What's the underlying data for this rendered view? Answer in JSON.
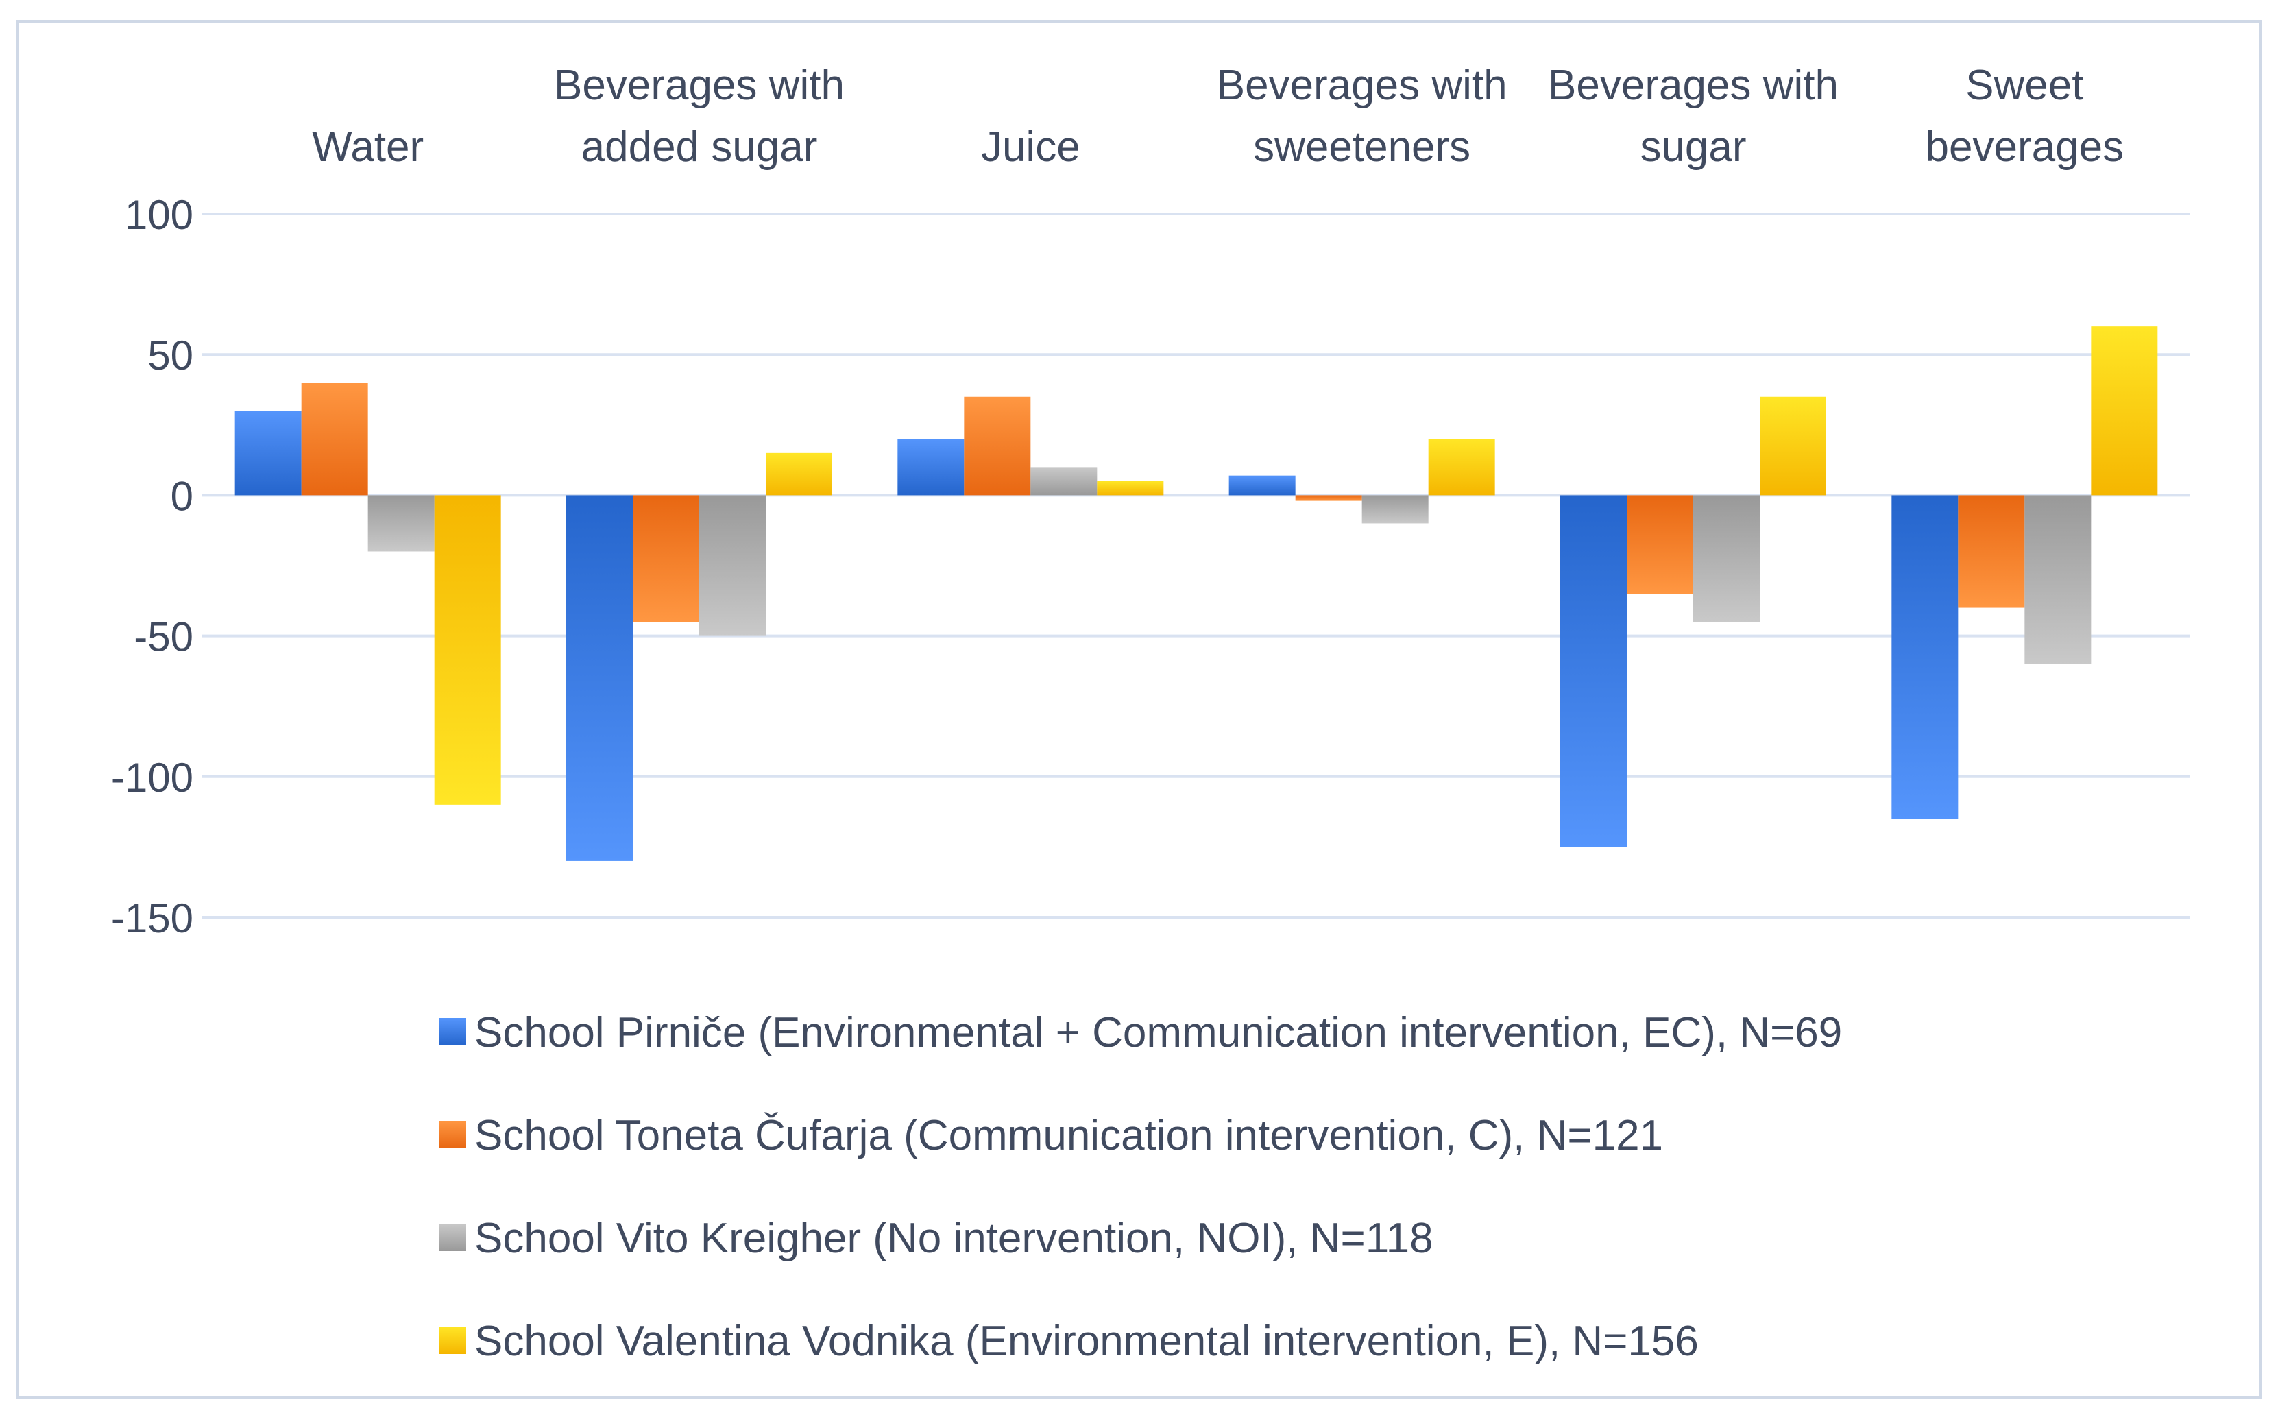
{
  "chart_data": {
    "type": "bar",
    "title": "",
    "xlabel": "",
    "ylabel": "",
    "ylim": [
      -150,
      100
    ],
    "yticks": [
      100,
      50,
      0,
      -50,
      -100,
      -150
    ],
    "grid": true,
    "category_label_position": "top",
    "legend_position": "bottom",
    "categories": [
      [
        "Water"
      ],
      [
        "Beverages with",
        "added sugar"
      ],
      [
        "Juice"
      ],
      [
        "Beverages with",
        "sweeteners"
      ],
      [
        "Beverages with",
        "sugar"
      ],
      [
        "Sweet",
        "beverages"
      ]
    ],
    "series": [
      {
        "name": "School Pirniče (Environmental + Communication intervention, EC), N=69",
        "color": "#2F6FD6",
        "values": [
          30,
          -130,
          20,
          7,
          -125,
          -115
        ]
      },
      {
        "name": "School Toneta Čufarja (Communication intervention, C), N=121",
        "color": "#F2711C",
        "values": [
          40,
          -45,
          35,
          -2,
          -35,
          -40
        ]
      },
      {
        "name": "School Vito Kreigher (No intervention, NOI), N=118",
        "color": "#A3A3A3",
        "values": [
          -20,
          -50,
          10,
          -10,
          -45,
          -60
        ]
      },
      {
        "name": "School Valentina Vodnika (Environmental intervention, E), N=156",
        "color": "#FFC000",
        "values": [
          -110,
          15,
          5,
          20,
          35,
          60
        ]
      }
    ]
  },
  "style": {
    "gridline_color": "#D9E2F1",
    "axis_text_color": "#404A5F",
    "border_color": "#CFD8E6"
  }
}
